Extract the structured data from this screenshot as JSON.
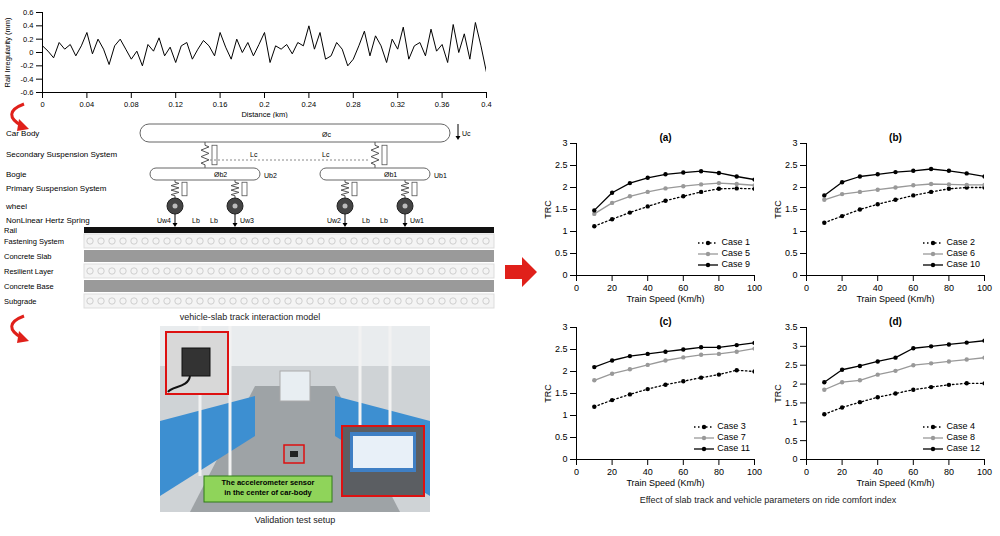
{
  "chart_data": [
    {
      "type": "line",
      "x_label": "Distance (km)",
      "y_label": "Rail Irregularity (mm)",
      "color": "#000000",
      "x": [
        0,
        0.005,
        0.01,
        0.015,
        0.02,
        0.025,
        0.03,
        0.035,
        0.04,
        0.045,
        0.05,
        0.055,
        0.06,
        0.065,
        0.07,
        0.075,
        0.08,
        0.085,
        0.09,
        0.095,
        0.1,
        0.105,
        0.11,
        0.115,
        0.12,
        0.125,
        0.13,
        0.135,
        0.14,
        0.145,
        0.15,
        0.155,
        0.16,
        0.165,
        0.17,
        0.175,
        0.18,
        0.185,
        0.19,
        0.195,
        0.2,
        0.205,
        0.21,
        0.215,
        0.22,
        0.225,
        0.23,
        0.235,
        0.24,
        0.245,
        0.25,
        0.255,
        0.26,
        0.265,
        0.27,
        0.275,
        0.28,
        0.285,
        0.29,
        0.295,
        0.3,
        0.305,
        0.31,
        0.315,
        0.32,
        0.325,
        0.33,
        0.335,
        0.34,
        0.345,
        0.35,
        0.355,
        0.36,
        0.365,
        0.37,
        0.375,
        0.38,
        0.385,
        0.39,
        0.395,
        0.4
      ],
      "values": [
        0.1,
        0.02,
        -0.08,
        0.15,
        0.05,
        0.12,
        -0.05,
        0.1,
        0.3,
        -0.02,
        0.2,
        0.05,
        -0.18,
        0.1,
        0.2,
        0.05,
        -0.1,
        0.02,
        -0.2,
        0.12,
        0.02,
        0.22,
        -0.05,
        0.08,
        -0.15,
        0.1,
        0.15,
        -0.1,
        0.05,
        0.18,
        0.1,
        -0.05,
        0.3,
        0.08,
        -0.1,
        0.2,
        0,
        0.15,
        -0.05,
        0.12,
        0.3,
        -0.15,
        0.1,
        0.05,
        0.12,
        -0.02,
        0.15,
        0.1,
        0.4,
        0.05,
        0.3,
        -0.1,
        -0.05,
        0.15,
        0.05,
        -0.2,
        -0.1,
        0.1,
        0.32,
        -0.05,
        0.25,
        0.1,
        -0.15,
        0.2,
        0.05,
        0.38,
        -0.1,
        0.1,
        0.15,
        -0.05,
        0.35,
        0.02,
        0.12,
        -0.15,
        0.42,
        0,
        0.28,
        -0.1,
        0.45,
        0.1,
        -0.3
      ],
      "xlim": [
        0,
        0.4
      ],
      "xticks": [
        0,
        0.04,
        0.08,
        0.12,
        0.16,
        0.2,
        0.24,
        0.28,
        0.32,
        0.36,
        0.4
      ],
      "ylim": [
        -0.6,
        0.6
      ],
      "yticks": [
        -0.6,
        -0.4,
        -0.2,
        0,
        0.2,
        0.4,
        0.6
      ]
    },
    {
      "type": "line",
      "title": "(a)",
      "x_label": "Train Speed (Km/h)",
      "y_label": "TRC",
      "legend": "lower right",
      "x": [
        10,
        20,
        30,
        40,
        50,
        60,
        70,
        80,
        90,
        100
      ],
      "series": [
        {
          "name": "Case 1",
          "color": "#000000",
          "marker": "circle",
          "line_style": "dotted",
          "values": [
            1.12,
            1.28,
            1.43,
            1.57,
            1.7,
            1.8,
            1.9,
            1.97,
            1.98,
            1.97
          ]
        },
        {
          "name": "Case 5",
          "color": "#999999",
          "marker": "circle",
          "line_style": "solid",
          "values": [
            1.4,
            1.65,
            1.8,
            1.9,
            1.98,
            2.03,
            2.07,
            2.1,
            2.08,
            2.05
          ]
        },
        {
          "name": "Case 9",
          "color": "#000000",
          "marker": "circle",
          "line_style": "solid",
          "values": [
            1.48,
            1.88,
            2.1,
            2.22,
            2.3,
            2.34,
            2.37,
            2.33,
            2.25,
            2.18
          ]
        }
      ],
      "xlim": [
        0,
        100
      ],
      "xticks": [
        0,
        20,
        40,
        60,
        80,
        100
      ],
      "ylim": [
        0,
        3
      ],
      "yticks": [
        0,
        0.5,
        1,
        1.5,
        2,
        2.5,
        3
      ]
    },
    {
      "type": "line",
      "title": "(b)",
      "x_label": "Train Speed (Km/h)",
      "y_label": "TRC",
      "legend": "lower right",
      "x": [
        10,
        20,
        30,
        40,
        50,
        60,
        70,
        80,
        90,
        100
      ],
      "series": [
        {
          "name": "Case 2",
          "color": "#000000",
          "marker": "circle",
          "line_style": "dotted",
          "values": [
            1.2,
            1.35,
            1.5,
            1.62,
            1.72,
            1.82,
            1.9,
            1.97,
            2,
            2
          ]
        },
        {
          "name": "Case 6",
          "color": "#999999",
          "marker": "circle",
          "line_style": "solid",
          "values": [
            1.72,
            1.85,
            1.9,
            1.95,
            2,
            2.05,
            2.08,
            2.07,
            2.06,
            2.06
          ]
        },
        {
          "name": "Case 10",
          "color": "#000000",
          "marker": "circle",
          "line_style": "solid",
          "values": [
            1.82,
            2.12,
            2.25,
            2.3,
            2.35,
            2.38,
            2.42,
            2.38,
            2.32,
            2.25
          ]
        }
      ],
      "xlim": [
        0,
        100
      ],
      "xticks": [
        0,
        20,
        40,
        60,
        80,
        100
      ],
      "ylim": [
        0,
        3
      ],
      "yticks": [
        0,
        0.5,
        1,
        1.5,
        2,
        2.5,
        3
      ]
    },
    {
      "type": "line",
      "title": "(c)",
      "x_label": "Train Speed (Km/h)",
      "y_label": "TRC",
      "legend": "lower right",
      "x": [
        10,
        20,
        30,
        40,
        50,
        60,
        70,
        80,
        90,
        100
      ],
      "series": [
        {
          "name": "Case 3",
          "color": "#000000",
          "marker": "circle",
          "line_style": "dotted",
          "values": [
            1.2,
            1.35,
            1.48,
            1.6,
            1.7,
            1.78,
            1.86,
            1.93,
            2.03,
            2
          ]
        },
        {
          "name": "Case 7",
          "color": "#999999",
          "marker": "circle",
          "line_style": "solid",
          "values": [
            1.8,
            1.95,
            2.05,
            2.15,
            2.25,
            2.32,
            2.38,
            2.4,
            2.45,
            2.52
          ]
        },
        {
          "name": "Case 11",
          "color": "#000000",
          "marker": "circle",
          "line_style": "solid",
          "values": [
            2.1,
            2.25,
            2.35,
            2.4,
            2.45,
            2.5,
            2.55,
            2.55,
            2.6,
            2.65
          ]
        }
      ],
      "xlim": [
        0,
        100
      ],
      "xticks": [
        0,
        20,
        40,
        60,
        80,
        100
      ],
      "ylim": [
        0,
        3
      ],
      "yticks": [
        0,
        0.5,
        1,
        1.5,
        2,
        2.5,
        3
      ]
    },
    {
      "type": "line",
      "title": "(d)",
      "x_label": "Train Speed (Km/h)",
      "y_label": "TRC",
      "legend": "lower right",
      "x": [
        10,
        20,
        30,
        40,
        50,
        60,
        70,
        80,
        90,
        100
      ],
      "series": [
        {
          "name": "Case 4",
          "color": "#000000",
          "marker": "circle",
          "line_style": "dotted",
          "values": [
            1.2,
            1.38,
            1.52,
            1.65,
            1.75,
            1.85,
            1.92,
            1.98,
            2.02,
            2.02
          ]
        },
        {
          "name": "Case 8",
          "color": "#999999",
          "marker": "circle",
          "line_style": "solid",
          "values": [
            1.85,
            2.05,
            2.1,
            2.25,
            2.35,
            2.5,
            2.55,
            2.6,
            2.65,
            2.7
          ]
        },
        {
          "name": "Case 12",
          "color": "#000000",
          "marker": "circle",
          "line_style": "solid",
          "values": [
            2.05,
            2.38,
            2.48,
            2.6,
            2.7,
            2.95,
            3,
            3.05,
            3.1,
            3.15
          ]
        }
      ],
      "xlim": [
        0,
        100
      ],
      "xticks": [
        0,
        20,
        40,
        60,
        80,
        100
      ],
      "ylim": [
        0,
        3.5
      ],
      "yticks": [
        0,
        0.5,
        1,
        1.5,
        2,
        2.5,
        3,
        3.5
      ]
    }
  ],
  "model": {
    "caption": "vehicle-slab track interaction model",
    "vehicle_labels": [
      "Car Body",
      "Secondary Suspension System",
      "Bogie",
      "Primary Suspension System",
      "wheel",
      "NonLinear Hertz Spring"
    ],
    "track_layers": [
      "Rail",
      "Fastening System",
      "Concrete Slab",
      "Resilient Layer",
      "Concrete Base",
      "Subgrade"
    ],
    "symbols": {
      "car_rotation": "Øc",
      "car_displacement": "Uc",
      "car_half_length": "Lc",
      "rear_bogie_rotation": "Øb2",
      "rear_bogie_displacement": "Ub2",
      "front_bogie_rotation": "Øb1",
      "front_bogie_displacement": "Ub1",
      "bogie_half_base": "Lb",
      "wheels": [
        "Uw4",
        "Uw3",
        "Uw2",
        "Uw1"
      ]
    }
  },
  "photo": {
    "caption": "Validation test setup",
    "sensor_label": "The accelerometer sensor in the center of car-body"
  },
  "panels_caption": "Effect of slab track and vehicle parameters on ride comfort index"
}
